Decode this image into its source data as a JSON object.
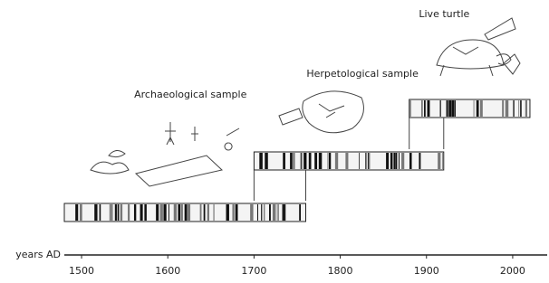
{
  "axis": {
    "label": "years AD",
    "xlim": [
      1480,
      2040
    ],
    "ticks": [
      1500,
      1600,
      1700,
      1800,
      1900,
      2000
    ]
  },
  "samples": [
    {
      "label": "Archaeological sample",
      "start": 1480,
      "end": 1760
    },
    {
      "label": "Herpetological sample",
      "start": 1700,
      "end": 1920
    },
    {
      "label": "Live turtle",
      "start": 1880,
      "end": 2020
    }
  ]
}
